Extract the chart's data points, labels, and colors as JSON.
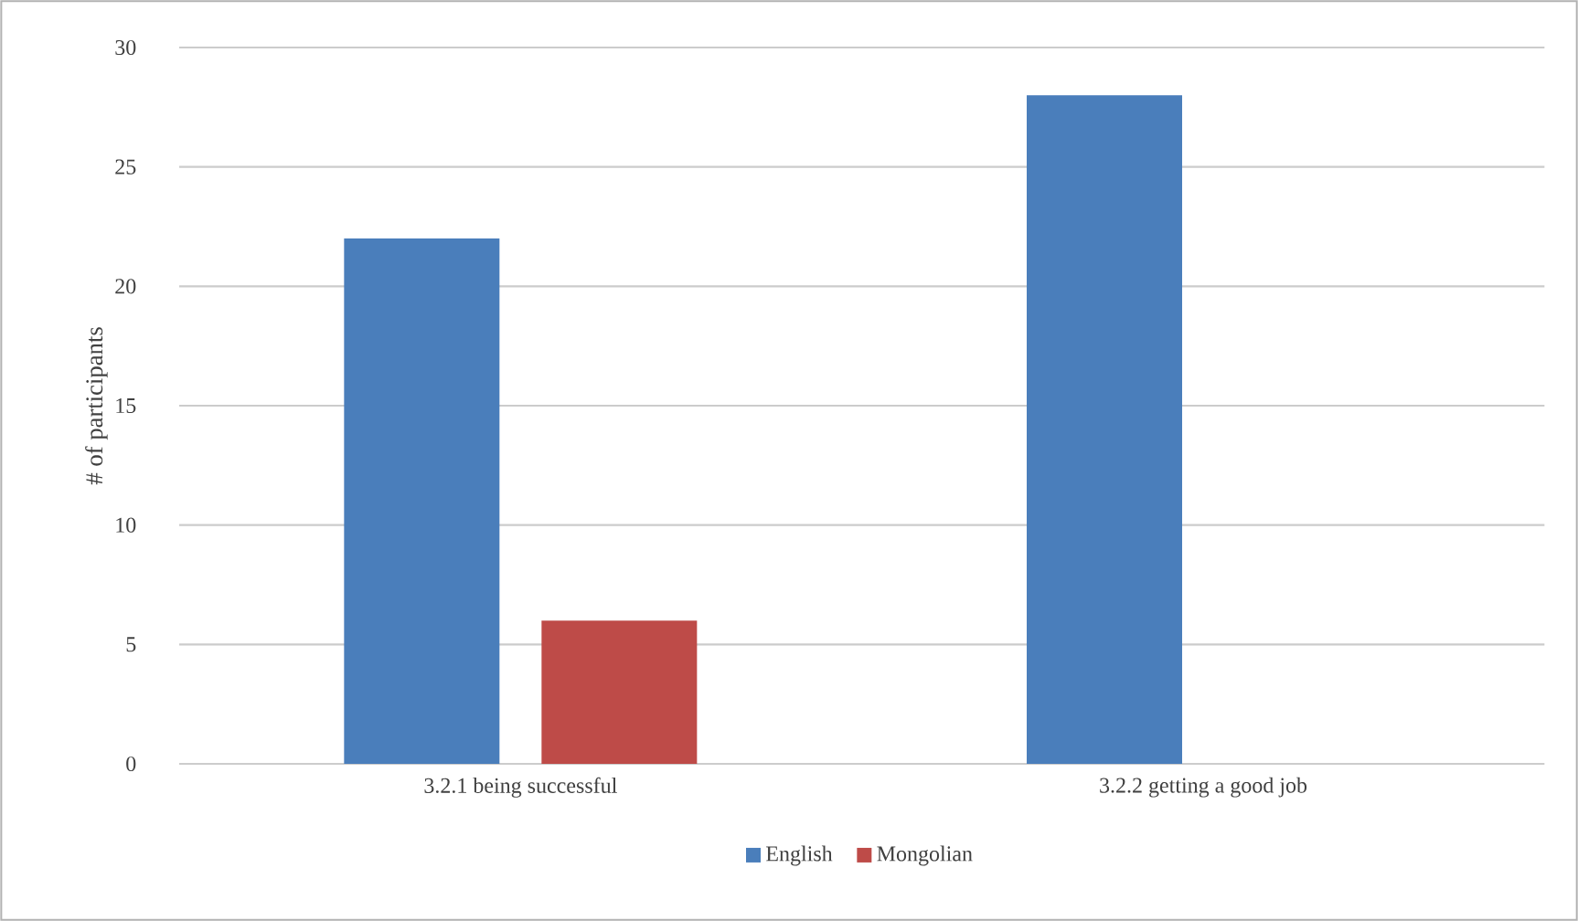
{
  "chart_data": {
    "type": "bar",
    "categories": [
      "3.2.1 being successful",
      "3.2.2 getting a good job"
    ],
    "ylabel": "# of participants",
    "series": [
      {
        "name": "English",
        "color": "#4a7ebb",
        "values": [
          22,
          28
        ]
      },
      {
        "name": "Mongolian",
        "color": "#be4b48",
        "values": [
          6,
          0
        ]
      }
    ],
    "ylim": [
      0,
      30
    ],
    "yticks": [
      0,
      5,
      10,
      15,
      20,
      25,
      30
    ],
    "grid": "y",
    "legend": "bottom"
  }
}
